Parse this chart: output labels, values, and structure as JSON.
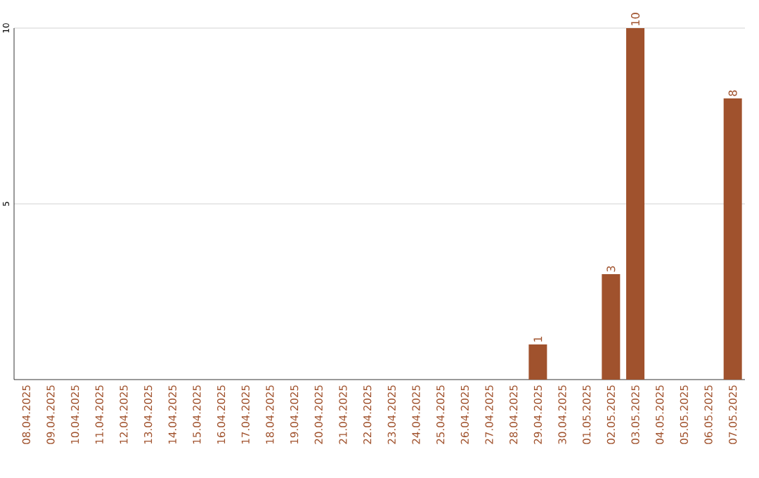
{
  "chart_data": {
    "type": "bar",
    "categories": [
      "08.04.2025",
      "09.04.2025",
      "10.04.2025",
      "11.04.2025",
      "12.04.2025",
      "13.04.2025",
      "14.04.2025",
      "15.04.2025",
      "16.04.2025",
      "17.04.2025",
      "18.04.2025",
      "19.04.2025",
      "20.04.2025",
      "21.04.2025",
      "22.04.2025",
      "23.04.2025",
      "24.04.2025",
      "25.04.2025",
      "26.04.2025",
      "27.04.2025",
      "28.04.2025",
      "29.04.2025",
      "30.04.2025",
      "01.05.2025",
      "02.05.2025",
      "03.05.2025",
      "04.05.2025",
      "05.05.2025",
      "06.05.2025",
      "07.05.2025"
    ],
    "values": [
      0,
      0,
      0,
      0,
      0,
      0,
      0,
      0,
      0,
      0,
      0,
      0,
      0,
      0,
      0,
      0,
      0,
      0,
      0,
      0,
      0,
      1,
      0,
      0,
      3,
      10,
      0,
      0,
      0,
      8
    ],
    "value_labels": [
      null,
      null,
      null,
      null,
      null,
      null,
      null,
      null,
      null,
      null,
      null,
      null,
      null,
      null,
      null,
      null,
      null,
      null,
      null,
      null,
      null,
      "1",
      null,
      null,
      "3",
      "10",
      null,
      null,
      null,
      "8"
    ],
    "color": "#a0522d",
    "ylim": [
      0,
      10
    ],
    "yticks": [
      5,
      10
    ],
    "grid": "y"
  }
}
